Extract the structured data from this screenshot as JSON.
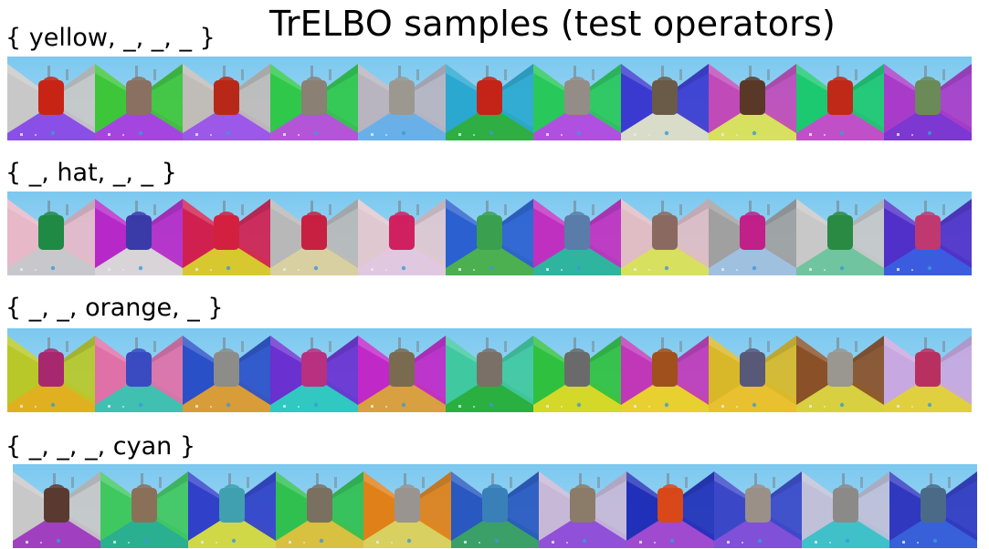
{
  "title": "TrELBO samples (test operators)",
  "rows": [
    {
      "label": "{ yellow, _, _, _ }",
      "tiles": [
        {
          "wall": "#c8c8c8",
          "floor": "#8a4fe6",
          "object": "#c82416"
        },
        {
          "wall": "#3ec63a",
          "floor": "#a545e0",
          "object": "#8a7060"
        },
        {
          "wall": "#c0bcb8",
          "floor": "#9c58e8",
          "object": "#b82818"
        },
        {
          "wall": "#2fc84a",
          "floor": "#b455d8",
          "object": "#8a8074"
        },
        {
          "wall": "#b8b4c0",
          "floor": "#6ab0e8",
          "object": "#9c9890"
        },
        {
          "wall": "#2aa8d0",
          "floor": "#2fae44",
          "object": "#c42418"
        },
        {
          "wall": "#28c85a",
          "floor": "#b050e0",
          "object": "#948c86"
        },
        {
          "wall": "#3a3ad0",
          "floor": "#d8dcc8",
          "object": "#6a5a48"
        },
        {
          "wall": "#c04ab8",
          "floor": "#d8e060",
          "object": "#5a3828"
        },
        {
          "wall": "#1cc870",
          "floor": "#c050c8",
          "object": "#c02818"
        },
        {
          "wall": "#a83cc8",
          "floor": "#7c38d0",
          "object": "#6a8a58"
        }
      ]
    },
    {
      "label": "{ _, hat, _, _ }",
      "tiles": [
        {
          "wall": "#e6b8c8",
          "floor": "#c8c8cc",
          "object": "#1e8a44"
        },
        {
          "wall": "#b628c8",
          "floor": "#d8d4d8",
          "object": "#3a3aa8"
        },
        {
          "wall": "#d02050",
          "floor": "#d8c830",
          "object": "#d42040"
        },
        {
          "wall": "#b8b8b8",
          "floor": "#d8d0a0",
          "object": "#c82040"
        },
        {
          "wall": "#e0c8d0",
          "floor": "#e0c8e0",
          "object": "#d02060"
        },
        {
          "wall": "#2a60d0",
          "floor": "#4cb050",
          "object": "#3aa050"
        },
        {
          "wall": "#c030c0",
          "floor": "#2fb4a0",
          "object": "#5a7ca8"
        },
        {
          "wall": "#e0bcc4",
          "floor": "#d8e060",
          "object": "#8a6a60"
        },
        {
          "wall": "#a0a0a0",
          "floor": "#a0c0e0",
          "object": "#c02088"
        },
        {
          "wall": "#c8c8c8",
          "floor": "#70c4a0",
          "object": "#2a8a44"
        },
        {
          "wall": "#5030c8",
          "floor": "#3c5ce0",
          "object": "#c03870"
        }
      ]
    },
    {
      "label": "{ _, _, orange, _ }",
      "tiles": [
        {
          "wall": "#b8c828",
          "floor": "#e0b020",
          "object": "#a82870"
        },
        {
          "wall": "#e070a8",
          "floor": "#40c0b0",
          "object": "#3a4ac0"
        },
        {
          "wall": "#2a50c8",
          "floor": "#d89c38",
          "object": "#8c8c88"
        },
        {
          "wall": "#6a30d0",
          "floor": "#30c8c0",
          "object": "#b83080"
        },
        {
          "wall": "#c028c8",
          "floor": "#d8a040",
          "object": "#7a6a50"
        },
        {
          "wall": "#40c8a0",
          "floor": "#2ab040",
          "object": "#7a7068"
        },
        {
          "wall": "#30c040",
          "floor": "#d4d828",
          "object": "#6a6a6a"
        },
        {
          "wall": "#c038b8",
          "floor": "#e8d030",
          "object": "#a0501c"
        },
        {
          "wall": "#d8b828",
          "floor": "#e8c030",
          "object": "#585878"
        },
        {
          "wall": "#8a5028",
          "floor": "#d8d040",
          "object": "#9a9690"
        },
        {
          "wall": "#c8a8e0",
          "floor": "#e0d040",
          "object": "#b83060"
        }
      ]
    },
    {
      "label": "{ _, _, _, cyan }",
      "tiles": [
        {
          "wall": "#c8c8c8",
          "floor": "#a040c0",
          "object": "#5a3a30"
        },
        {
          "wall": "#40c860",
          "floor": "#2ab090",
          "object": "#8a7058"
        },
        {
          "wall": "#3040c8",
          "floor": "#d0d848",
          "object": "#40a0b0"
        },
        {
          "wall": "#30c050",
          "floor": "#d8c040",
          "object": "#7a7060"
        },
        {
          "wall": "#e08018",
          "floor": "#d8d060",
          "object": "#9a9490"
        },
        {
          "wall": "#2858c0",
          "floor": "#3aa068",
          "object": "#3a80b8"
        },
        {
          "wall": "#c8b8d8",
          "floor": "#9050d8",
          "object": "#8a7c68"
        },
        {
          "wall": "#2030b8",
          "floor": "#a04ad0",
          "object": "#d84818"
        },
        {
          "wall": "#3a48c8",
          "floor": "#8050d8",
          "object": "#9a9088"
        },
        {
          "wall": "#c0c0d8",
          "floor": "#40c0c8",
          "object": "#8c8a88"
        },
        {
          "wall": "#3038c0",
          "floor": "#3860d8",
          "object": "#4a6a88"
        }
      ]
    }
  ]
}
